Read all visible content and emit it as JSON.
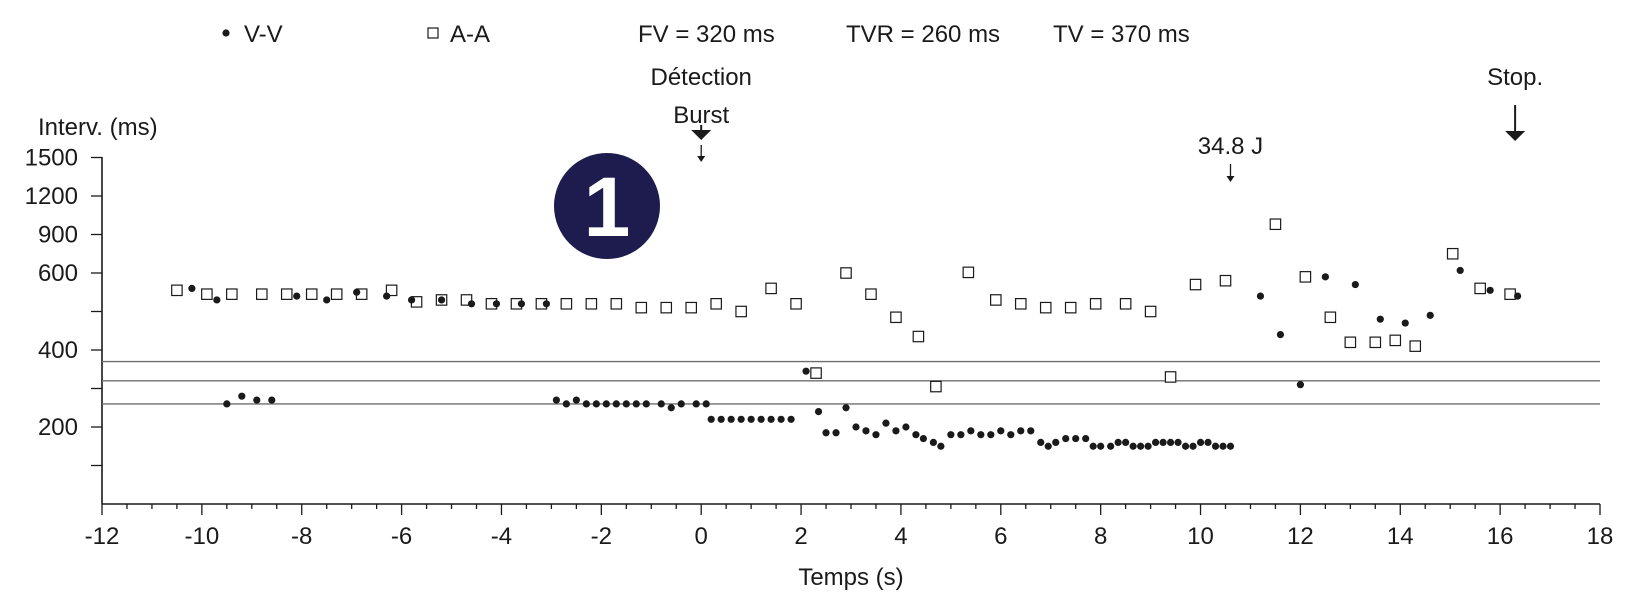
{
  "chart_data": {
    "type": "scatter",
    "legend": [
      {
        "name": "V-V",
        "marker": "filled-dot"
      },
      {
        "name": "A-A",
        "marker": "open-square"
      }
    ],
    "params": [
      "FV = 320 ms",
      "TVR = 260 ms",
      "TV = 370 ms"
    ],
    "badge": "1",
    "xlabel": "Temps (s)",
    "ylabel": "Interv. (ms)",
    "xlim": [
      -12,
      18
    ],
    "x_ticks": [
      "-12",
      "-10",
      "-8",
      "-6",
      "-4",
      "-2",
      "0",
      "2",
      "4",
      "6",
      "8",
      "10",
      "12",
      "14",
      "16",
      "18"
    ],
    "y_ticks": [
      {
        "label": "1500",
        "value": 1500
      },
      {
        "label": "1200",
        "value": 1200
      },
      {
        "label": "900",
        "value": 900
      },
      {
        "label": "600",
        "value": 600
      },
      {
        "label": "",
        "value": 500
      },
      {
        "label": "400",
        "value": 400
      },
      {
        "label": "",
        "value": 300
      },
      {
        "label": "200",
        "value": 200
      },
      {
        "label": "",
        "value": 100
      },
      {
        "label": "",
        "value": 0
      }
    ],
    "reference_lines": [
      370,
      320,
      260
    ],
    "annotations": [
      {
        "text": "Détection",
        "x": 0,
        "arrow": false,
        "level": 1
      },
      {
        "text": "Burst",
        "x": 0,
        "arrow": true,
        "arrow_style": "thick",
        "level": 2
      },
      {
        "text": "34.8 J",
        "x": 10.6,
        "arrow": true,
        "arrow_style": "thin",
        "level": 3
      },
      {
        "text": "Stop.",
        "x": 16.3,
        "arrow": true,
        "arrow_style": "thick",
        "level": 1
      }
    ],
    "series": [
      {
        "name": "V-V",
        "points": [
          [
            -10.2,
            560
          ],
          [
            -9.7,
            530
          ],
          [
            -9.5,
            260
          ],
          [
            -9.2,
            280
          ],
          [
            -8.9,
            270
          ],
          [
            -8.6,
            270
          ],
          [
            -8.1,
            540
          ],
          [
            -7.5,
            530
          ],
          [
            -6.9,
            550
          ],
          [
            -6.3,
            540
          ],
          [
            -5.8,
            530
          ],
          [
            -5.2,
            530
          ],
          [
            -4.6,
            520
          ],
          [
            -4.1,
            520
          ],
          [
            -3.6,
            520
          ],
          [
            -3.1,
            520
          ],
          [
            -2.9,
            270
          ],
          [
            -2.7,
            260
          ],
          [
            -2.5,
            270
          ],
          [
            -2.3,
            260
          ],
          [
            -2.1,
            260
          ],
          [
            -1.9,
            260
          ],
          [
            -1.7,
            260
          ],
          [
            -1.5,
            260
          ],
          [
            -1.3,
            260
          ],
          [
            -1.1,
            260
          ],
          [
            -0.8,
            260
          ],
          [
            -0.6,
            250
          ],
          [
            -0.4,
            260
          ],
          [
            -0.1,
            260
          ],
          [
            0.1,
            260
          ],
          [
            0.2,
            220
          ],
          [
            0.4,
            220
          ],
          [
            0.6,
            220
          ],
          [
            0.8,
            220
          ],
          [
            1.0,
            220
          ],
          [
            1.2,
            220
          ],
          [
            1.4,
            220
          ],
          [
            1.6,
            220
          ],
          [
            1.8,
            220
          ],
          [
            2.1,
            345
          ],
          [
            2.35,
            240
          ],
          [
            2.5,
            185
          ],
          [
            2.7,
            185
          ],
          [
            2.9,
            250
          ],
          [
            3.1,
            200
          ],
          [
            3.3,
            190
          ],
          [
            3.5,
            180
          ],
          [
            3.7,
            210
          ],
          [
            3.9,
            190
          ],
          [
            4.1,
            200
          ],
          [
            4.3,
            180
          ],
          [
            4.45,
            170
          ],
          [
            4.65,
            160
          ],
          [
            4.8,
            150
          ],
          [
            5.0,
            180
          ],
          [
            5.2,
            180
          ],
          [
            5.4,
            190
          ],
          [
            5.6,
            180
          ],
          [
            5.8,
            180
          ],
          [
            6.0,
            190
          ],
          [
            6.2,
            180
          ],
          [
            6.4,
            190
          ],
          [
            6.6,
            190
          ],
          [
            6.8,
            160
          ],
          [
            6.95,
            150
          ],
          [
            7.1,
            160
          ],
          [
            7.3,
            170
          ],
          [
            7.5,
            170
          ],
          [
            7.7,
            170
          ],
          [
            7.85,
            150
          ],
          [
            8.0,
            150
          ],
          [
            8.2,
            150
          ],
          [
            8.35,
            160
          ],
          [
            8.5,
            160
          ],
          [
            8.65,
            150
          ],
          [
            8.8,
            150
          ],
          [
            8.95,
            150
          ],
          [
            9.1,
            160
          ],
          [
            9.25,
            160
          ],
          [
            9.4,
            160
          ],
          [
            9.55,
            160
          ],
          [
            9.7,
            150
          ],
          [
            9.85,
            150
          ],
          [
            10.0,
            160
          ],
          [
            10.15,
            160
          ],
          [
            10.3,
            150
          ],
          [
            10.45,
            150
          ],
          [
            10.6,
            150
          ],
          [
            11.2,
            540
          ],
          [
            11.6,
            440
          ],
          [
            12.0,
            310
          ],
          [
            12.5,
            590
          ],
          [
            13.1,
            570
          ],
          [
            13.6,
            480
          ],
          [
            14.1,
            470
          ],
          [
            14.6,
            490
          ],
          [
            15.2,
            620
          ],
          [
            15.8,
            555
          ],
          [
            16.35,
            540
          ]
        ]
      },
      {
        "name": "A-A",
        "points": [
          [
            -10.5,
            555
          ],
          [
            -9.9,
            545
          ],
          [
            -9.4,
            545
          ],
          [
            -8.8,
            545
          ],
          [
            -8.3,
            545
          ],
          [
            -7.8,
            545
          ],
          [
            -7.3,
            545
          ],
          [
            -6.8,
            545
          ],
          [
            -6.2,
            555
          ],
          [
            -5.7,
            525
          ],
          [
            -5.2,
            530
          ],
          [
            -4.7,
            530
          ],
          [
            -4.2,
            520
          ],
          [
            -3.7,
            520
          ],
          [
            -3.2,
            520
          ],
          [
            -2.7,
            520
          ],
          [
            -2.2,
            520
          ],
          [
            -1.7,
            520
          ],
          [
            -1.2,
            510
          ],
          [
            -0.7,
            510
          ],
          [
            -0.2,
            510
          ],
          [
            0.3,
            520
          ],
          [
            0.8,
            500
          ],
          [
            1.4,
            560
          ],
          [
            1.9,
            520
          ],
          [
            2.3,
            340
          ],
          [
            2.9,
            600
          ],
          [
            3.4,
            545
          ],
          [
            3.9,
            485
          ],
          [
            4.35,
            435
          ],
          [
            4.7,
            305
          ],
          [
            5.35,
            605
          ],
          [
            5.9,
            530
          ],
          [
            6.4,
            520
          ],
          [
            6.9,
            510
          ],
          [
            7.4,
            510
          ],
          [
            7.9,
            520
          ],
          [
            8.5,
            520
          ],
          [
            9.0,
            500
          ],
          [
            9.4,
            330
          ],
          [
            9.9,
            570
          ],
          [
            10.5,
            580
          ],
          [
            11.5,
            980
          ],
          [
            12.1,
            590
          ],
          [
            12.6,
            485
          ],
          [
            13.0,
            420
          ],
          [
            13.5,
            420
          ],
          [
            13.9,
            425
          ],
          [
            14.3,
            410
          ],
          [
            15.05,
            750
          ],
          [
            15.6,
            560
          ],
          [
            16.2,
            545
          ]
        ]
      }
    ]
  }
}
